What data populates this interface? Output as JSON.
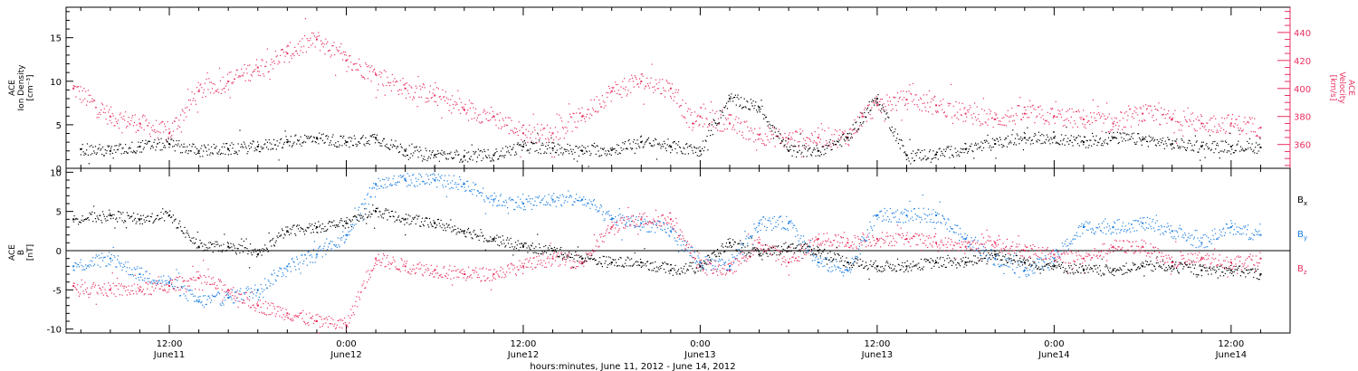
{
  "colors": {
    "black": "#000000",
    "density": "#000000",
    "velocity": "#e8305f",
    "bx": "#000000",
    "by": "#1e7fe0",
    "bz": "#e8305f"
  },
  "xaxis": {
    "title": "hours:minutes, June 11, 2012 - June 14, 2012",
    "ticks": [
      {
        "t": 12,
        "line1": "12:00",
        "line2": "June11"
      },
      {
        "t": 24,
        "line1": "0:00",
        "line2": "June12"
      },
      {
        "t": 36,
        "line1": "12:00",
        "line2": "June12"
      },
      {
        "t": 48,
        "line1": "0:00",
        "line2": "June13"
      },
      {
        "t": 60,
        "line1": "12:00",
        "line2": "June13"
      },
      {
        "t": 72,
        "line1": "0:00",
        "line2": "June14"
      },
      {
        "t": 84,
        "line1": "12:00",
        "line2": "June14"
      }
    ]
  },
  "chart_data": [
    {
      "type": "scatter",
      "panel": "top",
      "ylabel_lines": [
        "ACE",
        "Ion Density",
        "[cm⁻³]"
      ],
      "y2label_lines": [
        "ACE",
        "Velocity",
        "[km/s]"
      ],
      "xlim_hours_since_June11_0000": [
        5.0,
        88.0
      ],
      "ylim": [
        0,
        18.5
      ],
      "yticks": [
        0,
        5,
        10,
        15
      ],
      "y2lim": [
        343,
        458
      ],
      "y2ticks": [
        360,
        380,
        400,
        420,
        440
      ],
      "series": [
        {
          "name": "Ion Density",
          "axis": "left",
          "x": [
            6,
            8,
            10,
            12,
            14,
            16,
            18,
            20,
            22,
            24,
            26,
            28,
            30,
            32,
            34,
            36,
            38,
            40,
            42,
            44,
            46,
            48,
            50,
            52,
            54,
            56,
            58,
            60,
            62,
            64,
            66,
            68,
            70,
            72,
            74,
            76,
            78,
            80,
            82,
            84,
            86
          ],
          "y": [
            2.2,
            2.0,
            2.5,
            2.8,
            2.0,
            2.2,
            2.5,
            3.0,
            3.5,
            3.0,
            3.5,
            2.0,
            1.5,
            1.4,
            1.5,
            2.5,
            2.3,
            2.0,
            2.1,
            3.0,
            2.5,
            2.0,
            8.0,
            7.0,
            2.0,
            2.0,
            3.5,
            8.0,
            1.5,
            1.6,
            2.2,
            2.8,
            3.5,
            3.5,
            3.0,
            3.5,
            3.3,
            2.8,
            2.5,
            2.5,
            2.4
          ]
        },
        {
          "name": "Velocity",
          "axis": "right",
          "x": [
            5.5,
            8,
            10,
            12,
            14,
            16,
            18,
            20,
            22,
            24,
            26,
            28,
            30,
            32,
            34,
            36,
            38,
            40,
            42,
            44,
            46,
            47.5,
            48,
            50,
            52,
            54,
            56,
            58,
            59,
            60,
            62,
            64,
            66,
            68,
            70,
            72,
            74,
            76,
            78,
            80,
            82,
            84,
            86
          ],
          "y": [
            400,
            380,
            375,
            368,
            398,
            405,
            415,
            425,
            435,
            420,
            410,
            400,
            395,
            385,
            380,
            368,
            368,
            380,
            398,
            405,
            400,
            375,
            380,
            375,
            367,
            364,
            365,
            365,
            380,
            388,
            392,
            388,
            382,
            378,
            382,
            380,
            378,
            375,
            382,
            378,
            375,
            375,
            372
          ]
        }
      ]
    },
    {
      "type": "scatter",
      "panel": "bottom",
      "ylabel_lines": [
        "ACE",
        "B",
        "[nT]"
      ],
      "xlim_hours_since_June11_0000": [
        5.0,
        88.0
      ],
      "ylim": [
        -10.5,
        10.5
      ],
      "yticks": [
        -10,
        -5,
        0,
        5,
        10
      ],
      "zero_line": true,
      "legend_position": "right",
      "series": [
        {
          "name": "Bx",
          "label": "B",
          "sub": "x",
          "x": [
            5.5,
            8,
            10,
            12,
            14,
            16,
            18,
            20,
            22,
            24,
            26,
            28,
            30,
            32,
            34,
            36,
            38,
            40,
            42,
            44,
            46,
            48,
            50,
            52,
            54,
            56,
            58,
            60,
            62,
            64,
            66,
            68,
            70,
            72,
            74,
            76,
            78,
            80,
            82,
            84,
            86
          ],
          "y": [
            4.0,
            4.5,
            4.0,
            4.5,
            0.5,
            0.5,
            -0.5,
            2.5,
            3.0,
            3.5,
            5.0,
            4.0,
            3.5,
            2.5,
            1.5,
            0.5,
            0.0,
            -1.0,
            -1.5,
            -1.5,
            -2.5,
            -2.0,
            1.0,
            -0.5,
            0.5,
            0.0,
            -1.5,
            -2.0,
            -2.0,
            -1.5,
            -1.5,
            -0.5,
            -1.5,
            -2.0,
            -2.5,
            -2.5,
            -2.0,
            -2.0,
            -2.5,
            -2.5,
            -3.0
          ]
        },
        {
          "name": "By",
          "label": "B",
          "sub": "y",
          "x": [
            5.5,
            8,
            10,
            12,
            14,
            16,
            18,
            20,
            22,
            24,
            26,
            28,
            30,
            32,
            34,
            36,
            38,
            40,
            42,
            44,
            46,
            48,
            50,
            52,
            54,
            56,
            58,
            60,
            62,
            64,
            66,
            68,
            70,
            72,
            74,
            76,
            78,
            80,
            82,
            84,
            86
          ],
          "y": [
            -2.0,
            -1.0,
            -3.0,
            -4.0,
            -6.5,
            -6.0,
            -5.0,
            -2.0,
            -0.5,
            2.0,
            8.5,
            9.0,
            9.0,
            8.5,
            6.5,
            6.0,
            6.5,
            6.5,
            4.0,
            3.5,
            2.5,
            -1.5,
            -2.0,
            3.5,
            3.5,
            -1.5,
            -2.5,
            4.5,
            4.5,
            4.5,
            1.5,
            -1.0,
            -2.5,
            -1.0,
            3.0,
            3.0,
            3.5,
            2.5,
            1.0,
            3.0,
            2.0
          ]
        },
        {
          "name": "Bz",
          "label": "B",
          "sub": "z",
          "x": [
            5.5,
            8,
            10,
            12,
            14,
            16,
            18,
            20,
            22,
            24,
            26,
            28,
            30,
            32,
            34,
            36,
            38,
            40,
            42,
            44,
            46,
            48,
            50,
            52,
            54,
            56,
            58,
            60,
            62,
            64,
            66,
            68,
            70,
            72,
            74,
            76,
            78,
            80,
            82,
            84,
            86
          ],
          "y": [
            -4.5,
            -5.0,
            -5.0,
            -4.5,
            -3.5,
            -5.0,
            -7.0,
            -8.0,
            -9.0,
            -9.5,
            -1.0,
            -2.0,
            -2.5,
            -3.0,
            -3.0,
            -2.0,
            -1.0,
            -1.5,
            3.0,
            4.0,
            4.0,
            -2.0,
            -2.5,
            1.0,
            -1.5,
            1.5,
            1.0,
            1.5,
            1.5,
            1.0,
            0.5,
            1.0,
            0.0,
            -0.5,
            -1.0,
            0.5,
            0.5,
            -1.5,
            -1.0,
            -1.5,
            -1.0
          ]
        }
      ]
    }
  ]
}
